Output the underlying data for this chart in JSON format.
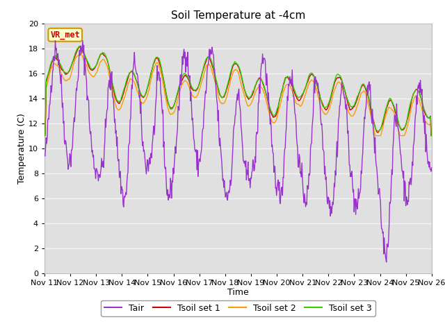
{
  "title": "Soil Temperature at -4cm",
  "xlabel": "Time",
  "ylabel": "Temperature (C)",
  "ylim": [
    0,
    20
  ],
  "tair_color": "#9933cc",
  "tsoil1_color": "#cc0000",
  "tsoil2_color": "#ff9900",
  "tsoil3_color": "#33cc00",
  "bg_color": "#e8e8e8",
  "plot_bg_color": "#e0e0e0",
  "grid_color": "#f5f5f5",
  "annotation_text": "VR_met",
  "annotation_color": "#cc0000",
  "annotation_bg": "#ffffcc",
  "annotation_edge": "#cc9900",
  "x_tick_labels": [
    "Nov 11",
    "Nov 12",
    "Nov 13",
    "Nov 14",
    "Nov 15",
    "Nov 16",
    "Nov 17",
    "Nov 18",
    "Nov 19",
    "Nov 20",
    "Nov 21",
    "Nov 22",
    "Nov 23",
    "Nov 24",
    "Nov 25",
    "Nov 26"
  ],
  "tick_fontsize": 8,
  "title_fontsize": 11,
  "label_fontsize": 9,
  "legend_fontsize": 9
}
